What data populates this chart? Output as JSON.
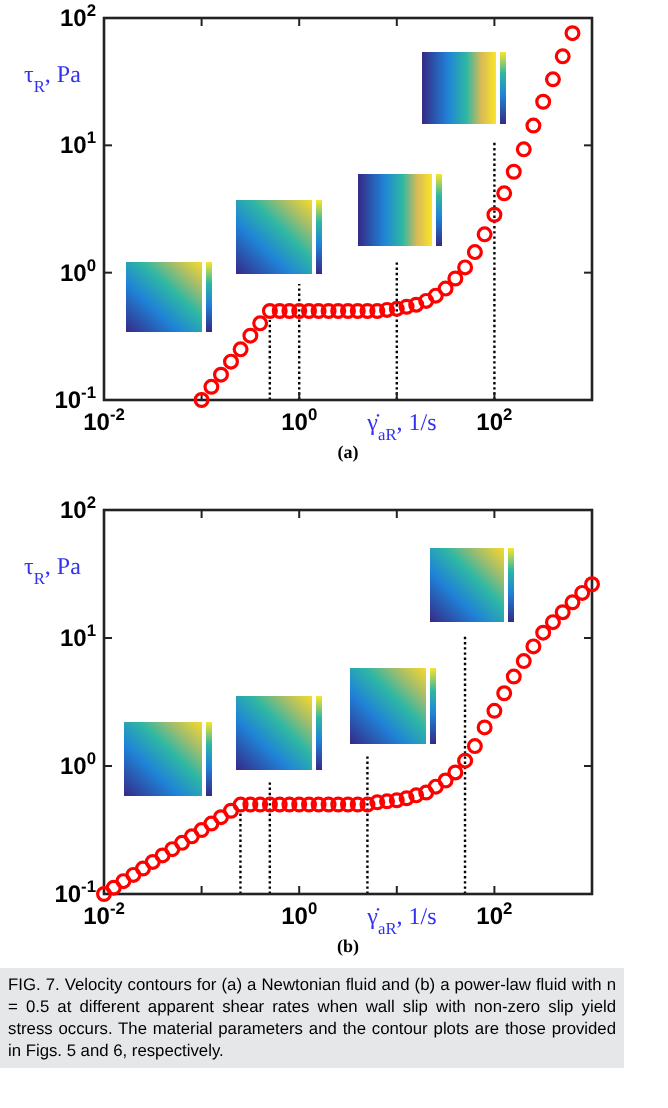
{
  "chart_data": [
    {
      "type": "scatter",
      "title": "(a)",
      "xlabel": "γ̇$_{aR}$, 1/s",
      "ylabel": "τ$_{R}$, Pa",
      "log": "xy",
      "grid": false,
      "marker": "circle",
      "xlim": [
        0.01,
        1000
      ],
      "ylim": [
        0.1,
        100
      ],
      "xticks": [
        {
          "value": 0.01,
          "label": "10$^{-2}$"
        },
        {
          "value": 0.1,
          "label": null
        },
        {
          "value": 1,
          "label": "10$^{0}$"
        },
        {
          "value": 10,
          "label": null
        },
        {
          "value": 100,
          "label": "10$^{2}$"
        },
        {
          "value": 1000,
          "label": null
        }
      ],
      "yticks": [
        {
          "value": 0.1,
          "label": "10$^{-1}$"
        },
        {
          "value": 1,
          "label": "10$^{0}$"
        },
        {
          "value": 10,
          "label": "10$^{1}$"
        },
        {
          "value": 100,
          "label": "10$^{2}$"
        }
      ],
      "ref_lines": [
        {
          "axis": "x",
          "value": 0.5,
          "line_style": "dotted"
        },
        {
          "axis": "x",
          "value": 1,
          "line_style": "dotted"
        },
        {
          "axis": "x",
          "value": 10,
          "line_style": "dotted"
        },
        {
          "axis": "x",
          "value": 100,
          "line_style": "dotted"
        }
      ],
      "series": [
        {
          "color": "#ff0000",
          "x": [
            0.1,
            0.126,
            0.158,
            0.2,
            0.251,
            0.316,
            0.398,
            0.501,
            0.631,
            0.794,
            1,
            1.26,
            1.58,
            2,
            2.51,
            3.16,
            3.98,
            5.01,
            6.31,
            7.94,
            10,
            12.6,
            15.8,
            20,
            25.1,
            31.6,
            39.8,
            50.1,
            63.1,
            79.4,
            100,
            126,
            158,
            200,
            251,
            316,
            398,
            501,
            631
          ],
          "values": [
            0.1,
            0.127,
            0.158,
            0.2,
            0.25,
            0.32,
            0.4,
            0.5,
            0.5,
            0.5,
            0.5,
            0.5,
            0.5,
            0.5,
            0.5,
            0.5,
            0.5,
            0.5,
            0.5,
            0.51,
            0.52,
            0.54,
            0.56,
            0.6,
            0.66,
            0.75,
            0.9,
            1.1,
            1.45,
            2,
            2.85,
            4.2,
            6.2,
            9.3,
            14.3,
            22,
            33,
            50,
            76
          ]
        }
      ]
    },
    {
      "type": "scatter",
      "title": "(b)",
      "xlabel": "γ̇$_{aR}$, 1/s",
      "ylabel": "τ$_{R}$, Pa",
      "log": "xy",
      "grid": false,
      "marker": "circle",
      "xlim": [
        0.01,
        1000
      ],
      "ylim": [
        0.1,
        100
      ],
      "xticks": [
        {
          "value": 0.01,
          "label": "10$^{-2}$"
        },
        {
          "value": 0.1,
          "label": null
        },
        {
          "value": 1,
          "label": "10$^{0}$"
        },
        {
          "value": 10,
          "label": null
        },
        {
          "value": 100,
          "label": "10$^{2}$"
        },
        {
          "value": 1000,
          "label": null
        }
      ],
      "yticks": [
        {
          "value": 0.1,
          "label": "10$^{-1}$"
        },
        {
          "value": 1,
          "label": "10$^{0}$"
        },
        {
          "value": 10,
          "label": "10$^{1}$"
        },
        {
          "value": 100,
          "label": "10$^{2}$"
        }
      ],
      "ref_lines": [
        {
          "axis": "x",
          "value": 0.25,
          "line_style": "dotted"
        },
        {
          "axis": "x",
          "value": 0.5,
          "line_style": "dotted"
        },
        {
          "axis": "x",
          "value": 5,
          "line_style": "dotted"
        },
        {
          "axis": "x",
          "value": 50,
          "line_style": "dotted"
        }
      ],
      "annotations": [
        "FIG. 7. Velocity contours for (a) a Newtonian fluid and (b) a power-law fluid with n = 0.5 at different apparent shear rates when wall slip with non-zero slip yield stress occurs. The material parameters and the contour plots are those provided in Figs. 5 and 6, respectively."
      ],
      "series": [
        {
          "color": "#ff0000",
          "x": [
            0.01,
            0.0126,
            0.0158,
            0.02,
            0.0251,
            0.0316,
            0.0398,
            0.0501,
            0.0631,
            0.0794,
            0.1,
            0.126,
            0.158,
            0.2,
            0.251,
            0.316,
            0.398,
            0.501,
            0.631,
            0.794,
            1,
            1.26,
            1.58,
            2,
            2.51,
            3.16,
            3.98,
            5.01,
            6.31,
            7.94,
            10,
            12.6,
            15.8,
            20,
            25.1,
            31.6,
            39.8,
            50.1,
            63.1,
            79.4,
            100,
            126,
            158,
            200,
            251,
            316,
            398,
            501,
            631,
            794,
            1000
          ],
          "values": [
            0.1,
            0.112,
            0.126,
            0.141,
            0.158,
            0.178,
            0.2,
            0.224,
            0.251,
            0.282,
            0.316,
            0.355,
            0.398,
            0.447,
            0.5,
            0.5,
            0.5,
            0.5,
            0.5,
            0.5,
            0.5,
            0.5,
            0.5,
            0.5,
            0.5,
            0.5,
            0.5,
            0.5,
            0.52,
            0.53,
            0.54,
            0.56,
            0.59,
            0.62,
            0.69,
            0.77,
            0.89,
            1.1,
            1.43,
            2,
            2.7,
            3.7,
            5,
            6.6,
            8.6,
            11,
            13.3,
            15.9,
            19,
            22.5,
            26.3
          ]
        }
      ]
    }
  ]
}
